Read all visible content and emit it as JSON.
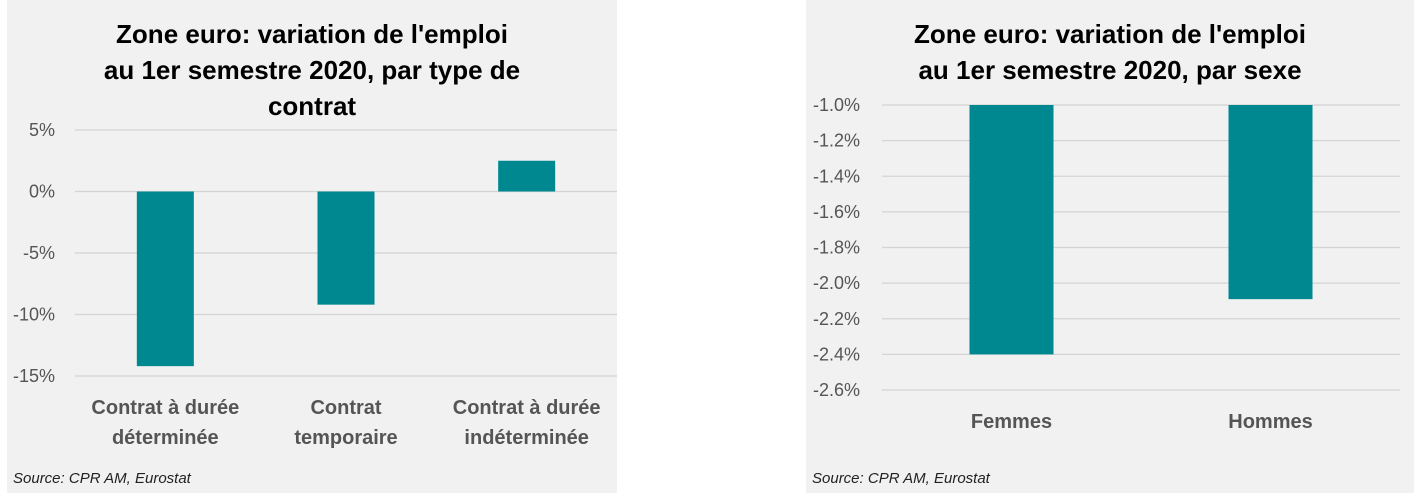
{
  "chart_data": [
    {
      "type": "bar",
      "title": "Zone euro: variation de l'emploi au 1er semestre 2020, par type de contrat",
      "title_lines": [
        "Zone euro: variation de l'emploi",
        "au 1er semestre 2020, par type de",
        "contrat"
      ],
      "categories": [
        "Contrat à durée déterminée",
        "Contrat temporaire",
        "Contrat à durée indéterminée"
      ],
      "category_lines": [
        [
          "Contrat à durée",
          "déterminée"
        ],
        [
          "Contrat",
          "temporaire"
        ],
        [
          "Contrat à durée",
          "indéterminée"
        ]
      ],
      "values": [
        -14.2,
        -9.2,
        2.5
      ],
      "ylim": [
        -15,
        5
      ],
      "yticks": [
        5,
        0,
        -5,
        -10,
        -15
      ],
      "ytick_labels": [
        "5%",
        "0%",
        "-5%",
        "-10%",
        "-15%"
      ],
      "grid": true,
      "bar_color": "#008891",
      "source": "Source: CPR AM, Eurostat"
    },
    {
      "type": "bar",
      "title": "Zone euro: variation de l'emploi au 1er semestre 2020, par sexe",
      "title_lines": [
        "Zone euro: variation de l'emploi",
        "au 1er semestre 2020, par sexe"
      ],
      "categories": [
        "Femmes",
        "Hommes"
      ],
      "category_lines": [
        [
          "Femmes"
        ],
        [
          "Hommes"
        ]
      ],
      "values": [
        -2.4,
        -2.09
      ],
      "ylim": [
        -2.6,
        -1.0
      ],
      "yticks": [
        -1.0,
        -1.2,
        -1.4,
        -1.6,
        -1.8,
        -2.0,
        -2.2,
        -2.4,
        -2.6
      ],
      "ytick_labels": [
        "-1.0%",
        "-1.2%",
        "-1.4%",
        "-1.6%",
        "-1.8%",
        "-2.0%",
        "-2.2%",
        "-2.4%",
        "-2.6%"
      ],
      "grid": true,
      "bar_color": "#008891",
      "source": "Source: CPR AM, Eurostat"
    }
  ]
}
